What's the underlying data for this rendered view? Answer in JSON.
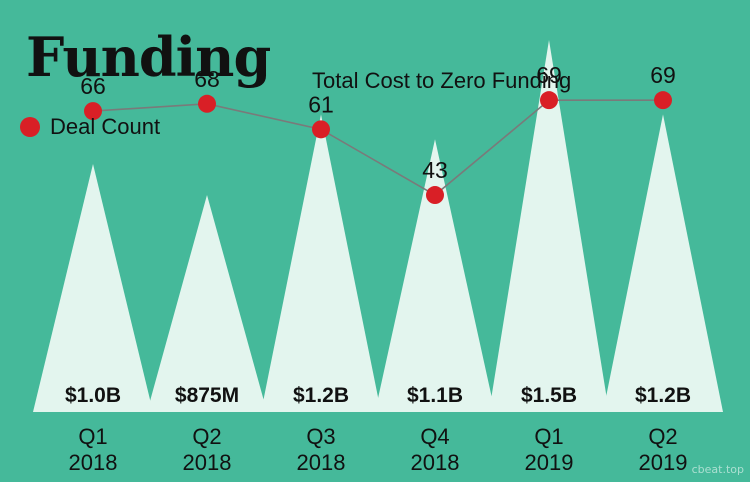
{
  "colors": {
    "background": "#45b99a",
    "triangle": "#e3f5ee",
    "dot": "#d91f26",
    "line": "#7a7a7a",
    "text": "#111111"
  },
  "chart_data": {
    "type": "line",
    "title": "Funding",
    "subtitle": "Total Cost to Zero Funding",
    "legend": {
      "label": "Deal Count",
      "position": "top-left"
    },
    "categories": [
      {
        "q": "Q1",
        "year": "2018"
      },
      {
        "q": "Q2",
        "year": "2018"
      },
      {
        "q": "Q3",
        "year": "2018"
      },
      {
        "q": "Q4",
        "year": "2018"
      },
      {
        "q": "Q1",
        "year": "2019"
      },
      {
        "q": "Q2",
        "year": "2019"
      }
    ],
    "series": [
      {
        "name": "Deal Count",
        "values": [
          66,
          68,
          61,
          43,
          69,
          69
        ]
      }
    ],
    "funding_values": [
      1.0,
      0.875,
      1.2,
      1.1,
      1.5,
      1.2
    ],
    "funding_labels": [
      "$1.0B",
      "$875M",
      "$1.2B",
      "$1.1B",
      "$1.5B",
      "$1.2B"
    ],
    "deal_ylim": [
      0,
      80
    ],
    "grid": false
  },
  "watermark": "cbeat.top"
}
